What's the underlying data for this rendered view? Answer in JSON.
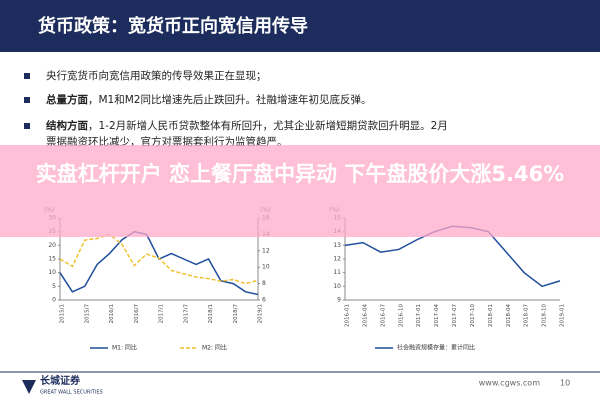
{
  "header": {
    "title": "货币政策：宽货币正向宽信用传导"
  },
  "bullets": [
    {
      "text": "央行宽货币向宽信用政策的传导效果正在显现；"
    },
    {
      "bold": "总量方面",
      "text": "，M1和M2同比增速先后止跌回升。社融增速年初见底反弹。"
    },
    {
      "bold": "结构方面",
      "text": "，1-2月新增人民币贷款整体有所回升，尤其企业新增短期贷款回升明显。2月票据融资环比减少，官方对票据套利行为监管趋严。"
    }
  ],
  "banner": "实盘杠杆开户 恋上餐厅盘中异动 下午盘股价大涨5.46%",
  "chart_data": [
    {
      "type": "line",
      "ylabel": "(%)",
      "y2label": "(%)",
      "categories": [
        "2015/1",
        null,
        "2015/7",
        null,
        "2016/1",
        null,
        "2016/7",
        null,
        "2017/1",
        null,
        "2017/7",
        null,
        "2018/1",
        null,
        "2018/7",
        null,
        "2019/1"
      ],
      "ylim": [
        0,
        30
      ],
      "yticks": [
        0,
        5,
        10,
        15,
        20,
        25,
        30
      ],
      "y2lim": [
        6,
        16
      ],
      "y2ticks": [
        6,
        8,
        10,
        12,
        14,
        16
      ],
      "series": [
        {
          "name": "M1: 同比",
          "color": "#1f4e9c",
          "dashed": false,
          "values": [
            10,
            3,
            5,
            13,
            17,
            22,
            25,
            24,
            15,
            17,
            15,
            13,
            15,
            7,
            6,
            3,
            2
          ]
        },
        {
          "name": "M2: 同比",
          "color": "#f0c030",
          "dashed": true,
          "axis": "y2",
          "values": [
            11,
            10.1,
            13.3,
            13.5,
            14,
            12.8,
            10.2,
            11.6,
            11.1,
            9.6,
            9.2,
            8.8,
            8.6,
            8.3,
            8.5,
            8.0,
            8.4
          ]
        }
      ]
    },
    {
      "type": "line",
      "ylabel": "(%)",
      "categories": [
        "2016-01",
        "2016-04",
        "2016-07",
        "2016-10",
        "2017-01",
        "2017-04",
        "2017-07",
        "2017-10",
        "2018-01",
        "2018-04",
        "2018-07",
        "2018-10",
        "2019-01"
      ],
      "ylim": [
        9,
        15
      ],
      "yticks": [
        9,
        10,
        11,
        12,
        13,
        14,
        15
      ],
      "series": [
        {
          "name": "社会融资规模存量：累计同比",
          "color": "#1f4e9c",
          "dashed": false,
          "values": [
            13.0,
            13.2,
            12.5,
            12.7,
            13.4,
            14.0,
            14.4,
            14.3,
            14.0,
            12.5,
            11.0,
            10.0,
            10.4
          ]
        }
      ]
    }
  ],
  "footer": {
    "company": "长城证券",
    "company_en": "GREAT WALL SECURITIES",
    "url": "www.cgws.com",
    "page": "10"
  }
}
